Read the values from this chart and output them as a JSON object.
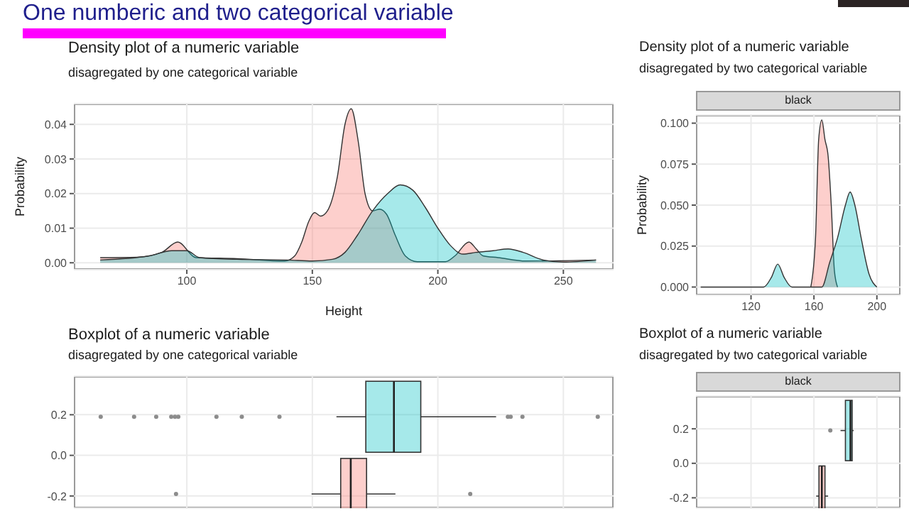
{
  "chart_data": [
    {
      "type": "area",
      "title": "Density plot of a numeric variable",
      "subtitle": "disagregated by one categorical variable",
      "xlabel": "Height",
      "ylabel": "Probability",
      "annotations": [
        "One numberic and two categorical variable"
      ],
      "xlim": [
        55,
        270
      ],
      "ylim": [
        -0.002,
        0.046
      ],
      "xticks": [
        100,
        150,
        200,
        250
      ],
      "yticks": [
        {
          "value": 0,
          "label": "0.00"
        },
        {
          "value": 0.01,
          "label": "0.01"
        },
        {
          "value": 0.02,
          "label": "0.02"
        },
        {
          "value": 0.03,
          "label": "0.03"
        },
        {
          "value": 0.04,
          "label": "0.04"
        }
      ],
      "grid": true,
      "series": [
        {
          "color": "#f8766d",
          "x": [
            65.5,
            80,
            90,
            96.4,
            103.6,
            120,
            139,
            143,
            145.8,
            148.6,
            150.9,
            153.3,
            156,
            160,
            163,
            165.5,
            168.3,
            171,
            174,
            176.8,
            179.6,
            183,
            187,
            191.8,
            203,
            206.8,
            212.4,
            215.3,
            218,
            224,
            235,
            263
          ],
          "values": [
            0.0015,
            0.0016,
            0.003,
            0.006,
            0.0015,
            0.0012,
            0.0005,
            0.002,
            0.006,
            0.012,
            0.0145,
            0.0135,
            0.015,
            0.025,
            0.04,
            0.0445,
            0.035,
            0.02,
            0.015,
            0.0155,
            0.014,
            0.008,
            0.002,
            0.0003,
            0.0003,
            0.002,
            0.006,
            0.004,
            0.002,
            0.0015,
            0.0005,
            0.0008
          ]
        },
        {
          "color": "#00bfc4",
          "x": [
            65.5,
            85,
            94,
            100,
            105,
            120,
            140,
            150,
            158,
            163,
            168,
            174,
            180,
            185,
            190,
            195,
            200,
            205,
            210,
            215,
            222,
            228,
            234,
            242,
            250,
            263
          ],
          "values": [
            0.0008,
            0.002,
            0.0035,
            0.0035,
            0.0015,
            0.001,
            0.0008,
            0.0005,
            0.001,
            0.003,
            0.008,
            0.015,
            0.02,
            0.0225,
            0.021,
            0.016,
            0.01,
            0.005,
            0.0025,
            0.003,
            0.0035,
            0.004,
            0.003,
            0.0008,
            0.0002,
            0.0008
          ]
        }
      ]
    },
    {
      "type": "area",
      "title": "Density plot of a numeric variable",
      "subtitle": "disagregated by two categorical variable",
      "ylabel": "Probability",
      "annotations": [
        "black"
      ],
      "xlim": [
        85,
        215
      ],
      "ylim": [
        -0.005,
        0.105
      ],
      "xticks": [
        120,
        160,
        200
      ],
      "yticks": [
        {
          "value": 0,
          "label": "0.000"
        },
        {
          "value": 0.025,
          "label": "0.025"
        },
        {
          "value": 0.05,
          "label": "0.050"
        },
        {
          "value": 0.075,
          "label": "0.075"
        },
        {
          "value": 0.1,
          "label": "0.100"
        }
      ],
      "grid": true,
      "series": [
        {
          "color": "#f8766d",
          "x": [
            158,
            161,
            163,
            165,
            167,
            169,
            171,
            173,
            175
          ],
          "values": [
            0,
            0.03,
            0.09,
            0.102,
            0.09,
            0.08,
            0.05,
            0.01,
            0
          ]
        },
        {
          "color": "#00bfc4",
          "x": [
            88,
            128,
            133,
            137,
            141,
            146,
            165,
            170,
            175,
            180,
            183,
            186,
            190,
            195,
            200
          ],
          "values": [
            0,
            0,
            0.006,
            0.014,
            0.006,
            0,
            0,
            0.015,
            0.03,
            0.05,
            0.058,
            0.05,
            0.03,
            0.008,
            0
          ]
        }
      ]
    },
    {
      "type": "box",
      "orientation": "horizontal",
      "title": "Boxplot of a numeric variable",
      "subtitle": "disagregated by one categorical variable",
      "xlim": [
        55,
        270
      ],
      "xticks": [
        {
          "value": 100,
          "label": null
        },
        {
          "value": 150,
          "label": null
        },
        {
          "value": 200,
          "label": null
        },
        {
          "value": 250,
          "label": null
        }
      ],
      "ylim": [
        -0.26,
        0.39
      ],
      "yticks": [
        {
          "value": -0.2,
          "label": "-0.2"
        },
        {
          "value": 0,
          "label": "0.0"
        },
        {
          "value": 0.2,
          "label": "0.2"
        }
      ],
      "grid": true,
      "tick_labels": "y",
      "series": [
        {
          "color": "#f8766d",
          "x": [
            -0.19
          ],
          "boxes": [
            {
              "low": 149.7,
              "q1": 161.3,
              "median": 165.3,
              "q3": 171.6,
              "high": 183.1,
              "outliers": [
                95.7,
                212.9
              ]
            }
          ]
        },
        {
          "color": "#00bfc4",
          "x": [
            0.19
          ],
          "boxes": [
            {
              "low": 159.6,
              "q1": 171.3,
              "median": 182.5,
              "q3": 193.2,
              "high": 223.2,
              "outliers": [
                65.7,
                79,
                87.8,
                93.8,
                95.3,
                96.6,
                111.8,
                121.9,
                136.9,
                227.9,
                229,
                233.7,
                263.7
              ]
            }
          ]
        }
      ]
    },
    {
      "type": "box",
      "orientation": "horizontal",
      "title": "Boxplot of a numeric variable",
      "subtitle": "disagregated by two categorical variable",
      "annotations": [
        "black"
      ],
      "xlim": [
        85,
        215
      ],
      "xticks": [
        {
          "value": 120,
          "label": null
        },
        {
          "value": 160,
          "label": null
        },
        {
          "value": 200,
          "label": null
        }
      ],
      "ylim": [
        -0.26,
        0.39
      ],
      "yticks": [
        {
          "value": -0.2,
          "label": "-0.2"
        },
        {
          "value": 0,
          "label": "0.0"
        },
        {
          "value": 0.2,
          "label": "0.2"
        }
      ],
      "grid": true,
      "tick_labels": "y",
      "series": [
        {
          "color": "#f8766d",
          "x": [
            -0.19
          ],
          "boxes": [
            {
              "low": 161.4,
              "q1": 163.2,
              "median": 165,
              "q3": 167,
              "high": 169
            }
          ]
        },
        {
          "color": "#00bfc4",
          "x": [
            0.19
          ],
          "boxes": [
            {
              "low": 176.9,
              "q1": 180,
              "median": 183.2,
              "q3": 184.3,
              "high": 185.2,
              "outliers": [
                170.4
              ]
            }
          ]
        }
      ]
    }
  ]
}
